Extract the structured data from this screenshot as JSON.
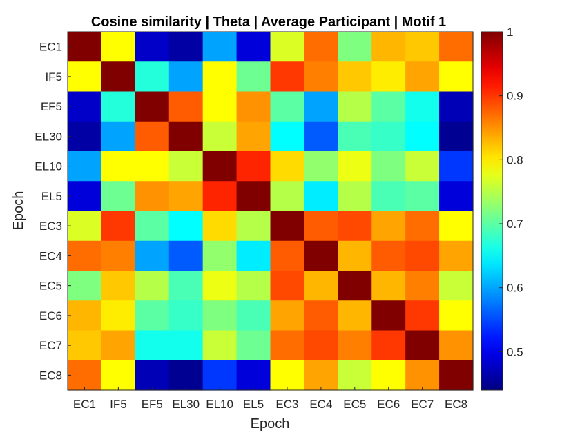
{
  "chart_data": {
    "type": "heatmap",
    "title": "Cosine similarity | Theta | Average Participant | Motif 1",
    "xlabel": "Epoch",
    "ylabel": "Epoch",
    "x_categories": [
      "EC1",
      "IF5",
      "EF5",
      "EL30",
      "EL10",
      "EL5",
      "EC3",
      "EC4",
      "EC5",
      "EC6",
      "EC7",
      "EC8"
    ],
    "y_categories": [
      "EC1",
      "IF5",
      "EF5",
      "EL30",
      "EL10",
      "EL5",
      "EC3",
      "EC4",
      "EC5",
      "EC6",
      "EC7",
      "EC8"
    ],
    "values": [
      [
        1.0,
        0.79,
        0.48,
        0.46,
        0.6,
        0.49,
        0.77,
        0.87,
        0.72,
        0.83,
        0.82,
        0.87
      ],
      [
        0.79,
        1.0,
        0.67,
        0.6,
        0.79,
        0.71,
        0.9,
        0.86,
        0.82,
        0.8,
        0.84,
        0.79
      ],
      [
        0.48,
        0.67,
        1.0,
        0.88,
        0.79,
        0.85,
        0.7,
        0.6,
        0.75,
        0.7,
        0.66,
        0.47
      ],
      [
        0.46,
        0.6,
        0.88,
        1.0,
        0.76,
        0.84,
        0.65,
        0.56,
        0.69,
        0.68,
        0.65,
        0.45
      ],
      [
        0.6,
        0.79,
        0.79,
        0.76,
        1.0,
        0.91,
        0.81,
        0.73,
        0.78,
        0.72,
        0.76,
        0.54
      ],
      [
        0.49,
        0.71,
        0.85,
        0.84,
        0.91,
        1.0,
        0.75,
        0.64,
        0.75,
        0.69,
        0.7,
        0.49
      ],
      [
        0.77,
        0.9,
        0.7,
        0.65,
        0.81,
        0.75,
        1.0,
        0.88,
        0.89,
        0.84,
        0.87,
        0.79
      ],
      [
        0.87,
        0.86,
        0.6,
        0.56,
        0.73,
        0.64,
        0.88,
        1.0,
        0.83,
        0.88,
        0.89,
        0.84
      ],
      [
        0.72,
        0.82,
        0.75,
        0.69,
        0.78,
        0.75,
        0.89,
        0.83,
        1.0,
        0.83,
        0.86,
        0.76
      ],
      [
        0.83,
        0.8,
        0.7,
        0.68,
        0.72,
        0.69,
        0.84,
        0.88,
        0.83,
        1.0,
        0.9,
        0.79
      ],
      [
        0.82,
        0.84,
        0.66,
        0.66,
        0.76,
        0.71,
        0.87,
        0.89,
        0.86,
        0.9,
        1.0,
        0.85
      ],
      [
        0.87,
        0.79,
        0.47,
        0.45,
        0.54,
        0.49,
        0.79,
        0.84,
        0.76,
        0.79,
        0.85,
        1.0
      ]
    ],
    "colormap": "jet",
    "clim": [
      0.44,
      1.0
    ],
    "colorbar": {
      "ticks": [
        0.5,
        0.6,
        0.7,
        0.8,
        0.9,
        1
      ],
      "tick_labels": [
        "0.5",
        "0.6",
        "0.7",
        "0.8",
        "0.9",
        "1"
      ],
      "position": "right"
    },
    "grid": false
  }
}
